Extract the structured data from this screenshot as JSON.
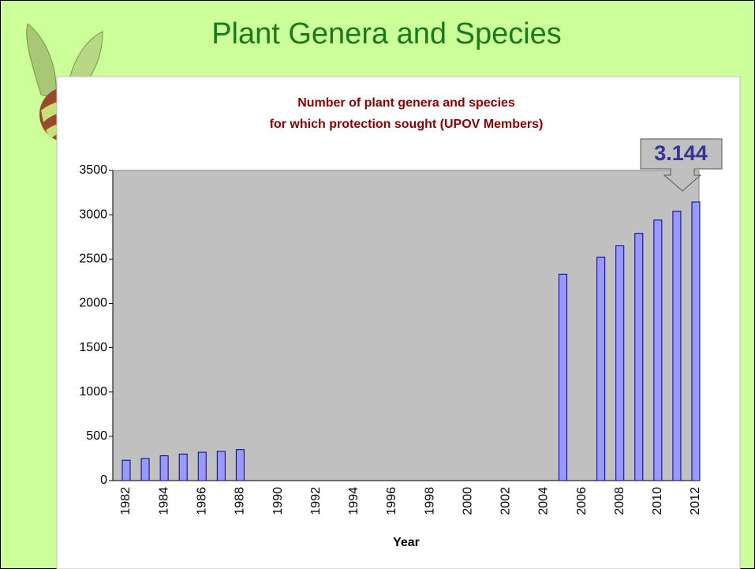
{
  "slide_title": "Plant Genera and Species",
  "chart_data": {
    "type": "bar",
    "title": [
      "Number of plant genera and species",
      "for which protection sought (UPOV Members)"
    ],
    "x_label": "Year",
    "annotation": "3.144",
    "categories": [
      "1982",
      null,
      "1984",
      null,
      "1986",
      null,
      "1988",
      null,
      "1990",
      null,
      "1992",
      null,
      "1994",
      null,
      "1996",
      null,
      "1998",
      null,
      "2000",
      null,
      "2002",
      null,
      "2004",
      null,
      "2006",
      null,
      "2008",
      null,
      "2010",
      null,
      "2012"
    ],
    "values": [
      230,
      250,
      280,
      300,
      320,
      330,
      350,
      null,
      null,
      null,
      null,
      null,
      null,
      null,
      null,
      null,
      null,
      null,
      null,
      null,
      null,
      null,
      null,
      2330,
      null,
      2520,
      2650,
      2790,
      2940,
      3040,
      3144
    ],
    "color": "#9999ff",
    "ylim": [
      0,
      3500
    ],
    "yticks": [
      0,
      500,
      1000,
      1500,
      2000,
      2500,
      3000,
      3500
    ],
    "grid": false
  }
}
